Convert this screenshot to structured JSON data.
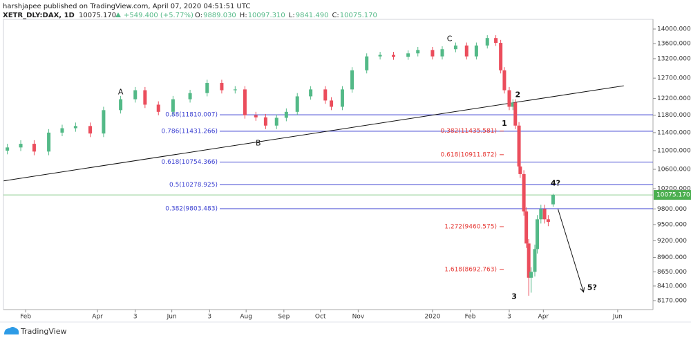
{
  "header": {
    "author_line": "harshjapee published on TradingView.com, April 07, 2020 04:51:51 UTC",
    "symbol": "XETR_DLY:DAX, 1D",
    "price": "10075.170",
    "change": "+549.400 (+5.77%)",
    "ohlc": [
      {
        "key": "O:",
        "value": "9889.030"
      },
      {
        "key": "H:",
        "value": "10097.310"
      },
      {
        "key": "L:",
        "value": "9841.490"
      },
      {
        "key": "C:",
        "value": "10075.170"
      }
    ]
  },
  "footer": {
    "brand": "TradingView"
  },
  "chart_data": {
    "type": "candlestick",
    "x": [
      16,
      27,
      38,
      50,
      61,
      72,
      84,
      95,
      109,
      121,
      129,
      140,
      152,
      166,
      180,
      192,
      203,
      211,
      220,
      228,
      237,
      245,
      254,
      265,
      277,
      282,
      291,
      299,
      311,
      322,
      333,
      345,
      353,
      365,
      373,
      384,
      393,
      401,
      410,
      417,
      421,
      424,
      428,
      431,
      433,
      436,
      437,
      440,
      442,
      444,
      446,
      449,
      451,
      454,
      457,
      460,
      464
    ],
    "open": [
      11000,
      11070,
      11150,
      10980,
      11400,
      11500,
      11550,
      11380,
      11920,
      12180,
      12400,
      12050,
      11880,
      12180,
      12330,
      12580,
      12400,
      12420,
      11800,
      11750,
      11560,
      11740,
      11880,
      12250,
      12420,
      12150,
      12000,
      12420,
      12900,
      13260,
      13300,
      13250,
      13340,
      13430,
      13260,
      13450,
      13550,
      13260,
      13550,
      13750,
      13620,
      12900,
      12400,
      12000,
      12100,
      11560,
      10660,
      10500,
      9750,
      9150,
      8550,
      8650,
      9050,
      9600,
      9800,
      9600,
      9889.03
    ],
    "high": [
      11150,
      11230,
      11230,
      11480,
      11580,
      11630,
      11630,
      12000,
      12260,
      12480,
      12480,
      12130,
      12260,
      12410,
      12660,
      12660,
      12500,
      12500,
      11880,
      11830,
      11820,
      11960,
      12330,
      12500,
      12500,
      12230,
      12500,
      12980,
      13340,
      13380,
      13380,
      13420,
      13510,
      13510,
      13530,
      13630,
      13630,
      13630,
      13830,
      13830,
      13700,
      12980,
      12480,
      12180,
      12180,
      11640,
      10740,
      10580,
      9830,
      9230,
      8730,
      9130,
      9680,
      9880,
      9880,
      9680,
      10097.31
    ],
    "low": [
      10920,
      10990,
      10900,
      10900,
      11320,
      11420,
      11300,
      11300,
      11840,
      12100,
      11970,
      11800,
      11800,
      12100,
      12250,
      12320,
      12320,
      11720,
      11670,
      11480,
      11480,
      11660,
      11800,
      12170,
      12070,
      11920,
      11920,
      12340,
      12820,
      13180,
      13170,
      13170,
      13260,
      13180,
      13180,
      13370,
      13180,
      13180,
      13470,
      13540,
      12820,
      12320,
      11920,
      11920,
      11480,
      10580,
      10420,
      9670,
      9070,
      8250,
      8300,
      8570,
      8970,
      9520,
      9520,
      9470,
      9841.49
    ],
    "close": [
      11070,
      11150,
      10980,
      11400,
      11500,
      11550,
      11380,
      11920,
      12180,
      12400,
      12050,
      11880,
      12180,
      12330,
      12580,
      12400,
      12420,
      11800,
      11750,
      11560,
      11740,
      11880,
      12250,
      12420,
      12150,
      12000,
      12420,
      12900,
      13260,
      13300,
      13250,
      13340,
      13430,
      13260,
      13450,
      13550,
      13260,
      13550,
      13750,
      13620,
      12900,
      12400,
      12000,
      12100,
      11560,
      10660,
      10500,
      9750,
      9150,
      8550,
      8650,
      9050,
      9600,
      9800,
      9600,
      9550,
      10075.17
    ],
    "up_color": "#53b987",
    "down_color": "#eb4d5c",
    "xlim": [
      12.8,
      546
    ],
    "xticks": [
      {
        "value": 31,
        "label": "Feb"
      },
      {
        "value": 90,
        "label": "Apr"
      },
      {
        "value": 121,
        "label": "3"
      },
      {
        "value": 151,
        "label": "Jun"
      },
      {
        "value": 182,
        "label": "3"
      },
      {
        "value": 212,
        "label": "Aug"
      },
      {
        "value": 243,
        "label": "Sep"
      },
      {
        "value": 273,
        "label": "Oct"
      },
      {
        "value": 304,
        "label": "Nov"
      },
      {
        "value": 365,
        "label": "2020"
      },
      {
        "value": 396,
        "label": "Feb"
      },
      {
        "value": 428,
        "label": "3"
      },
      {
        "value": 456,
        "label": "Apr"
      },
      {
        "value": 517,
        "label": "Jun"
      }
    ],
    "ylim": [
      8026,
      14271
    ],
    "log_scale": true,
    "yticks": [
      {
        "value": 14000,
        "label": "14000.000"
      },
      {
        "value": 13600,
        "label": "13600.000"
      },
      {
        "value": 13200,
        "label": "13200.000"
      },
      {
        "value": 12700,
        "label": "12700.000"
      },
      {
        "value": 12200,
        "label": "12200.000"
      },
      {
        "value": 11800,
        "label": "11800.000"
      },
      {
        "value": 11400,
        "label": "11400.000"
      },
      {
        "value": 11000,
        "label": "11000.000"
      },
      {
        "value": 10600,
        "label": "10600.000"
      },
      {
        "value": 10200,
        "label": "10200.000"
      },
      {
        "value": 9800,
        "label": "9800.000"
      },
      {
        "value": 9500,
        "label": "9500.000"
      },
      {
        "value": 9200,
        "label": "9200.000"
      },
      {
        "value": 8900,
        "label": "8900.000"
      },
      {
        "value": 8650,
        "label": "8650.000"
      },
      {
        "value": 8410,
        "label": "8410.000"
      },
      {
        "value": 8170,
        "label": "8170.000"
      }
    ],
    "last_price": {
      "value": 10075.17,
      "label": "10075.170",
      "color": "#4caf50"
    },
    "fib_levels": {
      "color": "#3a3fd1",
      "levels": [
        {
          "value": 11810.007,
          "label": "0.88(11810.007)"
        },
        {
          "value": 11431.266,
          "label": "0.786(11431.266)"
        },
        {
          "value": 10754.366,
          "label": "0.618(10754.366)"
        },
        {
          "value": 10278.925,
          "label": "0.5(10278.925)"
        },
        {
          "value": 9803.483,
          "label": "0.382(9803.483)"
        }
      ]
    },
    "fib_extensions": {
      "color": "#e53935",
      "levels": [
        {
          "value": 11435.581,
          "label": "0.382(11435.581)"
        },
        {
          "value": 10911.872,
          "label": "0.618(10911.872)"
        },
        {
          "value": 9460.575,
          "label": "1.272(9460.575)"
        },
        {
          "value": 8692.763,
          "label": "1.618(8692.763)"
        }
      ]
    },
    "trendline": {
      "x": [
        13,
        522
      ],
      "y": [
        10360,
        12510
      ]
    },
    "arrow": {
      "x": [
        468,
        489
      ],
      "y": [
        9797,
        8310
      ]
    },
    "annotations": [
      {
        "text": "A",
        "x": 109,
        "y": 12350
      },
      {
        "text": "B",
        "x": 222,
        "y": 11160
      },
      {
        "text": "C",
        "x": 379,
        "y": 13720
      },
      {
        "text": "1",
        "x": 424,
        "y": 11600
      },
      {
        "text": "2",
        "x": 435,
        "y": 12280
      },
      {
        "text": "3",
        "x": 432,
        "y": 8230
      },
      {
        "text": "4?",
        "x": 466,
        "y": 10310
      },
      {
        "text": "5?",
        "x": 496,
        "y": 8380
      }
    ]
  }
}
